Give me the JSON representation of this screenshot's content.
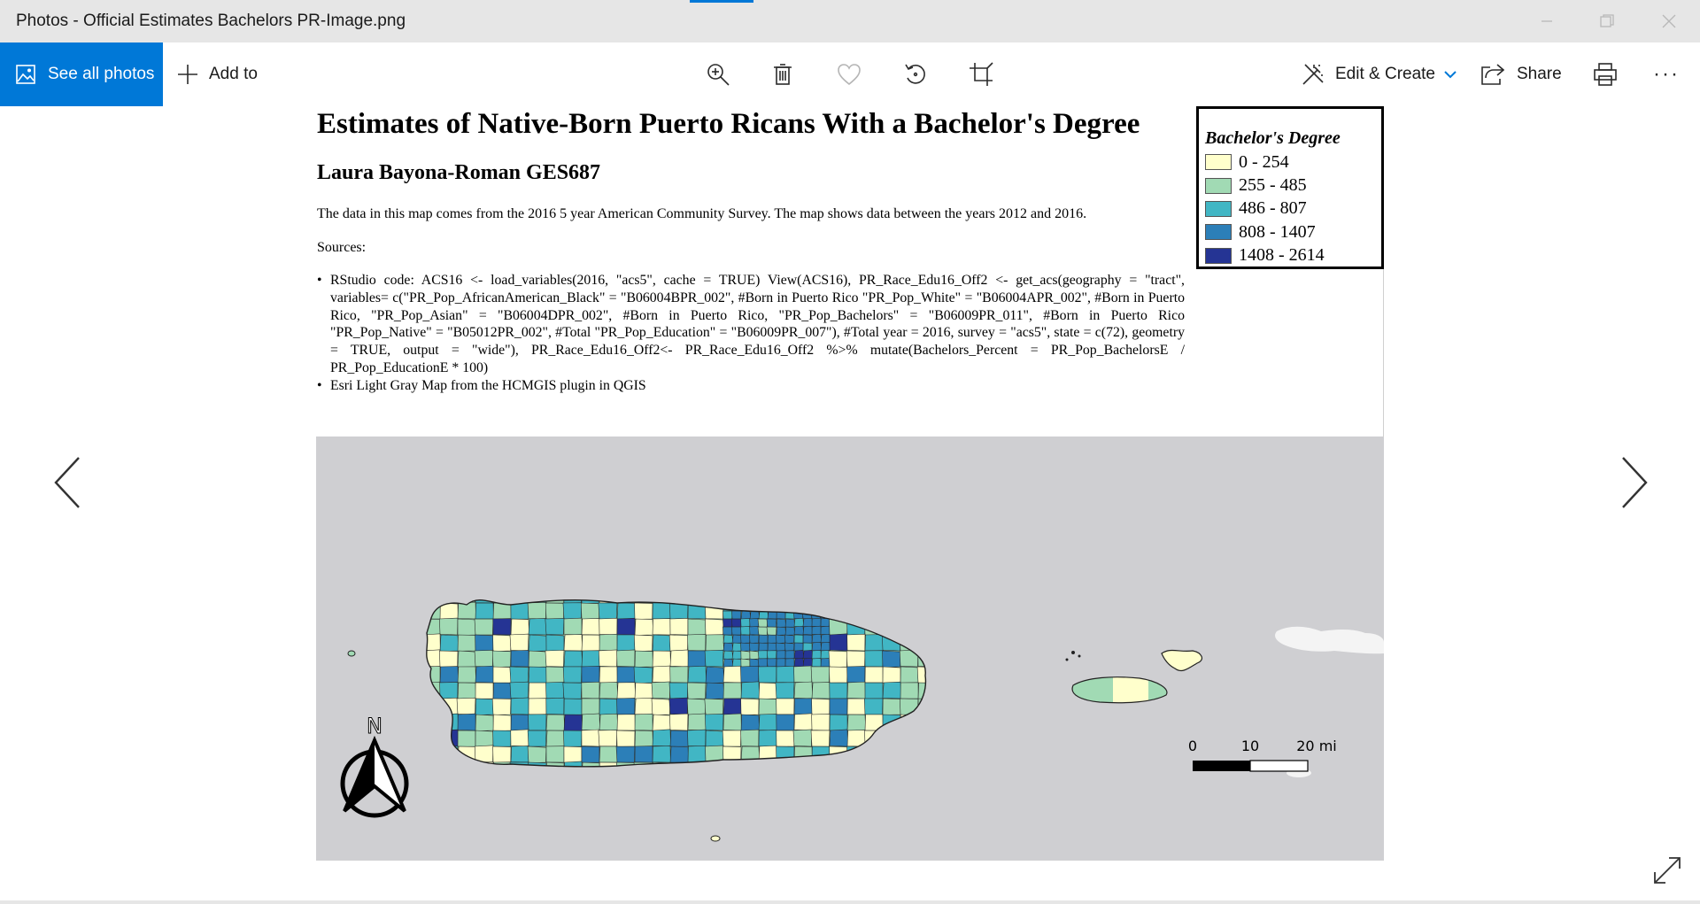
{
  "window": {
    "title": "Photos - Official Estimates Bachelors PR-Image.png"
  },
  "toolbar": {
    "see_all_label": "See all photos",
    "add_to_label": "Add to",
    "edit_create_label": "Edit & Create",
    "share_label": "Share",
    "more_label": "···",
    "icons": [
      "zoom-in-icon",
      "delete-icon",
      "favorite-icon",
      "rotate-icon",
      "crop-icon",
      "print-icon"
    ]
  },
  "image": {
    "title": "Estimates of Native-Born Puerto Ricans With a Bachelor's Degree",
    "author": "Laura Bayona-Roman GES687",
    "description": "The data in this map comes from the 2016 5 year American Community Survey. The map shows data between the years 2012 and 2016.",
    "sources_label": "Sources:",
    "bullets": [
      "RStudio code: ACS16 <- load_variables(2016, \"acs5\", cache = TRUE) View(ACS16), PR_Race_Edu16_Off2 <- get_acs(geography = \"tract\", variables= c(\"PR_Pop_AfricanAmerican_Black\" = \"B06004BPR_002\", #Born in Puerto Rico \"PR_Pop_White\" = \"B06004APR_002\", #Born in Puerto Rico, \"PR_Pop_Asian\" = \"B06004DPR_002\", #Born in Puerto Rico, \"PR_Pop_Bachelors\" = \"B06009PR_011\", #Born in Puerto Rico \"PR_Pop_Native\" = \"B05012PR_002\", #Total \"PR_Pop_Education\" = \"B06009PR_007\"), #Total year = 2016, survey = \"acs5\", state = c(72), geometry = TRUE, output = \"wide\"), PR_Race_Edu16_Off2<- PR_Race_Edu16_Off2 %>% mutate(Bachelors_Percent = PR_Pop_BachelorsE / PR_Pop_EducationE * 100)",
      "Esri Light Gray Map from the HCMGIS plugin in QGIS"
    ],
    "legend": {
      "title": "Bachelor's Degree",
      "classes": [
        {
          "label": "0 - 254",
          "color": "#ffffcc"
        },
        {
          "label": "255 - 485",
          "color": "#a1dab4"
        },
        {
          "label": "486 - 807",
          "color": "#41b6c4"
        },
        {
          "label": "808 - 1407",
          "color": "#2c7fb8"
        },
        {
          "label": "1408 - 2614",
          "color": "#253494"
        }
      ]
    },
    "map": {
      "north_label": "N",
      "scale_labels": [
        "0",
        "10",
        "20 mi"
      ],
      "background_color": "#cfcfd2"
    }
  }
}
